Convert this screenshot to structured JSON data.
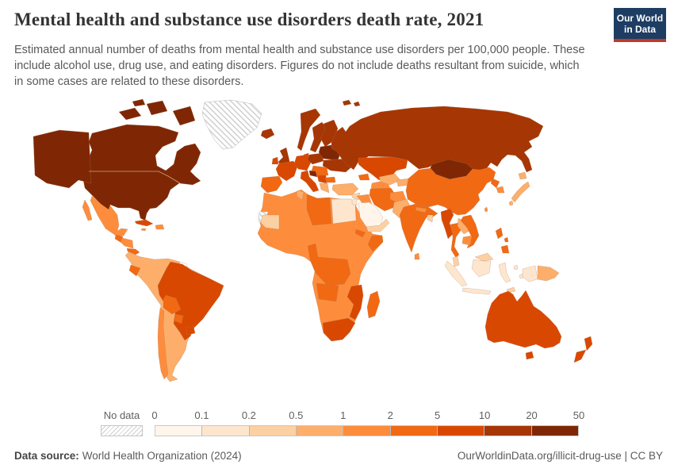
{
  "header": {
    "title": "Mental health and substance use disorders death rate, 2021",
    "subtitle_lines": [
      "Estimated annual number of deaths from mental health and substance use disorders per 100,000 people. These",
      "include alcohol use, drug use, and eating disorders. Figures do not include deaths resultant from suicide, which",
      "in some cases are related to these disorders."
    ]
  },
  "logo": {
    "line1": "Our World",
    "line2": "in Data",
    "bg_color": "#1d3d63",
    "accent_color": "#c0392b"
  },
  "legend": {
    "no_data_label": "No data",
    "tick_labels": [
      "0",
      "0.1",
      "0.2",
      "0.5",
      "1",
      "2",
      "5",
      "10",
      "20",
      "50"
    ],
    "colors": [
      "#fff5eb",
      "#fee6ce",
      "#fdd0a2",
      "#fdae6b",
      "#fd8d3c",
      "#f16913",
      "#d94801",
      "#a63603",
      "#7f2704"
    ]
  },
  "footer": {
    "source_label": "Data source:",
    "source_value": "World Health Organization (2024)",
    "credit": "OurWorldinData.org/illicit-drug-use | CC BY"
  },
  "map": {
    "fills": {
      "canada_usa": "#7f2704",
      "alaska": "#7f2704",
      "arctic_islands": "#7f2704",
      "mexico": "#fd8d3c",
      "guatemala": "#f16913",
      "honduras_nicaragua": "#fd8d3c",
      "costa_rica_panama": "#f16913",
      "cuba": "#d94801",
      "hispaniola": "#fd8d3c",
      "jamaica": "#fd8d3c",
      "south_america": "#fdae6b",
      "french_guiana": "#ffffff",
      "brazil": "#d94801",
      "ecuador": "#f16913",
      "bolivia": "#f16913",
      "paraguay": "#f16913",
      "uruguay": "#d94801",
      "chile": "#fd8d3c",
      "africa": "#fd8d3c",
      "libya": "#f16913",
      "egypt": "#fee6ce",
      "tunisia": "#fdae6b",
      "mauritania": "#fdd0a2",
      "eritrea": "#f16913",
      "somalia": "#f16913",
      "central_africa": "#f16913",
      "angola": "#f16913",
      "mozambique": "#d94801",
      "south_africa": "#d94801",
      "madagascar": "#f16913",
      "iceland": "#a63603",
      "uk": "#a63603",
      "ireland": "#d94801",
      "norway": "#a63603",
      "sweden": "#a63603",
      "finland": "#a63603",
      "denmark": "#d94801",
      "iberia": "#f16913",
      "france": "#d94801",
      "germany_central": "#d94801",
      "poland": "#a63603",
      "baltics_belarus": "#7f2704",
      "ukraine": "#a63603",
      "romania_hungary": "#f16913",
      "italy": "#d94801",
      "slovenia_croatia": "#7f2704",
      "balkans": "#d94801",
      "greece": "#fdae6b",
      "bulgaria": "#f16913",
      "russia": "#a63603",
      "svalbard": "#a63603",
      "mongolia": "#7f2704",
      "kazakhstan": "#d94801",
      "turkmenistan": "#fd8d3c",
      "uzbekistan": "#fdae6b",
      "kyrgyz_tajik": "#fdae6b",
      "caucasus": "#f16913",
      "turkey": "#fdae6b",
      "syria": "#fdd0a2",
      "iraq": "#fd8d3c",
      "iran": "#f16913",
      "saudi_arabia": "#fff5eb",
      "yemen_oman": "#fdd0a2",
      "jordan_israel": "#fee6ce",
      "afghanistan": "#fd8d3c",
      "pakistan": "#fdae6b",
      "india": "#f16913",
      "nepal": "#fd8d3c",
      "bangladesh": "#fdd0a2",
      "sri_lanka": "#fd8d3c",
      "china": "#f16913",
      "taiwan": "#fd8d3c",
      "north_korea": "#f16913",
      "south_korea": "#fd8d3c",
      "japan": "#fdae6b",
      "myanmar": "#d94801",
      "thailand": "#f16913",
      "laos": "#fdae6b",
      "vietnam": "#f16913",
      "cambodia": "#fd8d3c",
      "malaysia": "#fdd0a2",
      "indonesia": "#fee6ce",
      "png": "#fdae6b",
      "timor": "#fdd0a2",
      "philippines": "#f16913",
      "australia": "#d94801",
      "new_zealand": "#d94801"
    }
  },
  "chart_data": {
    "type": "heatmap",
    "subtype": "choropleth-world-map",
    "title": "Mental health and substance use disorders death rate, 2021",
    "unit": "deaths per 100,000 people",
    "year": 2021,
    "legend_position": "bottom",
    "bins": [
      {
        "label": "0–0.1",
        "color": "#fff5eb"
      },
      {
        "label": "0.1–0.2",
        "color": "#fee6ce"
      },
      {
        "label": "0.2–0.5",
        "color": "#fdd0a2"
      },
      {
        "label": "0.5–1",
        "color": "#fdae6b"
      },
      {
        "label": "1–2",
        "color": "#fd8d3c"
      },
      {
        "label": "2–5",
        "color": "#f16913"
      },
      {
        "label": "5–10",
        "color": "#d94801"
      },
      {
        "label": "10–20",
        "color": "#a63603"
      },
      {
        "label": "20–50",
        "color": "#7f2704"
      }
    ],
    "no_data": [
      "Greenland",
      "Western Sahara",
      "French Guiana"
    ],
    "regions": [
      {
        "name": "United States",
        "bin": "20–50"
      },
      {
        "name": "Canada",
        "bin": "20–50"
      },
      {
        "name": "Estonia, Latvia, Lithuania & Belarus",
        "bin": "20–50"
      },
      {
        "name": "Slovenia & Croatia",
        "bin": "20–50"
      },
      {
        "name": "Mongolia",
        "bin": "20–50"
      },
      {
        "name": "Russia",
        "bin": "10–20"
      },
      {
        "name": "United Kingdom",
        "bin": "10–20"
      },
      {
        "name": "Iceland",
        "bin": "10–20"
      },
      {
        "name": "Norway",
        "bin": "10–20"
      },
      {
        "name": "Sweden",
        "bin": "10–20"
      },
      {
        "name": "Finland",
        "bin": "10–20"
      },
      {
        "name": "Poland",
        "bin": "10–20"
      },
      {
        "name": "Ukraine",
        "bin": "10–20"
      },
      {
        "name": "Ireland",
        "bin": "5–10"
      },
      {
        "name": "Denmark",
        "bin": "5–10"
      },
      {
        "name": "France",
        "bin": "5–10"
      },
      {
        "name": "Germany & Central Europe",
        "bin": "5–10"
      },
      {
        "name": "Italy",
        "bin": "5–10"
      },
      {
        "name": "Serbia & Western Balkans",
        "bin": "5–10"
      },
      {
        "name": "Brazil",
        "bin": "5–10"
      },
      {
        "name": "Uruguay",
        "bin": "5–10"
      },
      {
        "name": "Cuba",
        "bin": "5–10"
      },
      {
        "name": "Kazakhstan",
        "bin": "5–10"
      },
      {
        "name": "Australia",
        "bin": "5–10"
      },
      {
        "name": "New Zealand",
        "bin": "5–10"
      },
      {
        "name": "South Africa",
        "bin": "5–10"
      },
      {
        "name": "Mozambique",
        "bin": "5–10"
      },
      {
        "name": "Myanmar",
        "bin": "5–10"
      },
      {
        "name": "Spain & Portugal",
        "bin": "2–5"
      },
      {
        "name": "Romania & Hungary",
        "bin": "2–5"
      },
      {
        "name": "Bulgaria",
        "bin": "2–5"
      },
      {
        "name": "China",
        "bin": "2–5"
      },
      {
        "name": "India",
        "bin": "2–5"
      },
      {
        "name": "Iran",
        "bin": "2–5"
      },
      {
        "name": "Thailand",
        "bin": "2–5"
      },
      {
        "name": "Vietnam",
        "bin": "2–5"
      },
      {
        "name": "Philippines",
        "bin": "2–5"
      },
      {
        "name": "North Korea",
        "bin": "2–5"
      },
      {
        "name": "Ecuador",
        "bin": "2–5"
      },
      {
        "name": "Bolivia",
        "bin": "2–5"
      },
      {
        "name": "Paraguay",
        "bin": "2–5"
      },
      {
        "name": "Guatemala",
        "bin": "2–5"
      },
      {
        "name": "Costa Rica & Panama",
        "bin": "2–5"
      },
      {
        "name": "Libya",
        "bin": "2–5"
      },
      {
        "name": "Somalia",
        "bin": "2–5"
      },
      {
        "name": "Eritrea",
        "bin": "2–5"
      },
      {
        "name": "DR Congo & Central Africa",
        "bin": "2–5"
      },
      {
        "name": "Angola",
        "bin": "2–5"
      },
      {
        "name": "Madagascar",
        "bin": "2–5"
      },
      {
        "name": "Caucasus states",
        "bin": "2–5"
      },
      {
        "name": "Mexico",
        "bin": "1–2"
      },
      {
        "name": "Chile",
        "bin": "1–2"
      },
      {
        "name": "Honduras & Nicaragua",
        "bin": "1–2"
      },
      {
        "name": "Hispaniola",
        "bin": "1–2"
      },
      {
        "name": "Jamaica",
        "bin": "1–2"
      },
      {
        "name": "Sahel & most of Africa",
        "bin": "1–2"
      },
      {
        "name": "Iraq",
        "bin": "1–2"
      },
      {
        "name": "Afghanistan",
        "bin": "1–2"
      },
      {
        "name": "Turkmenistan",
        "bin": "1–2"
      },
      {
        "name": "Nepal",
        "bin": "1–2"
      },
      {
        "name": "Sri Lanka",
        "bin": "1–2"
      },
      {
        "name": "South Korea",
        "bin": "1–2"
      },
      {
        "name": "Taiwan",
        "bin": "1–2"
      },
      {
        "name": "Cambodia",
        "bin": "1–2"
      },
      {
        "name": "Colombia",
        "bin": "0.5–1"
      },
      {
        "name": "Venezuela",
        "bin": "0.5–1"
      },
      {
        "name": "Peru",
        "bin": "0.5–1"
      },
      {
        "name": "Argentina",
        "bin": "0.5–1"
      },
      {
        "name": "Turkey",
        "bin": "0.5–1"
      },
      {
        "name": "Greece",
        "bin": "0.5–1"
      },
      {
        "name": "Tunisia",
        "bin": "0.5–1"
      },
      {
        "name": "Uzbekistan",
        "bin": "0.5–1"
      },
      {
        "name": "Kyrgyzstan & Tajikistan",
        "bin": "0.5–1"
      },
      {
        "name": "Pakistan",
        "bin": "0.5–1"
      },
      {
        "name": "Japan",
        "bin": "0.5–1"
      },
      {
        "name": "Laos",
        "bin": "0.5–1"
      },
      {
        "name": "Papua New Guinea",
        "bin": "0.5–1"
      },
      {
        "name": "Mauritania",
        "bin": "0.2–0.5"
      },
      {
        "name": "Yemen & Oman",
        "bin": "0.2–0.5"
      },
      {
        "name": "Syria",
        "bin": "0.2–0.5"
      },
      {
        "name": "Bangladesh",
        "bin": "0.2–0.5"
      },
      {
        "name": "Malaysia",
        "bin": "0.2–0.5"
      },
      {
        "name": "Timor-Leste",
        "bin": "0.2–0.5"
      },
      {
        "name": "Indonesia",
        "bin": "0.1–0.2"
      },
      {
        "name": "Egypt",
        "bin": "0.1–0.2"
      },
      {
        "name": "Jordan & Israel",
        "bin": "0.1–0.2"
      },
      {
        "name": "Saudi Arabia",
        "bin": "0–0.1"
      }
    ]
  }
}
